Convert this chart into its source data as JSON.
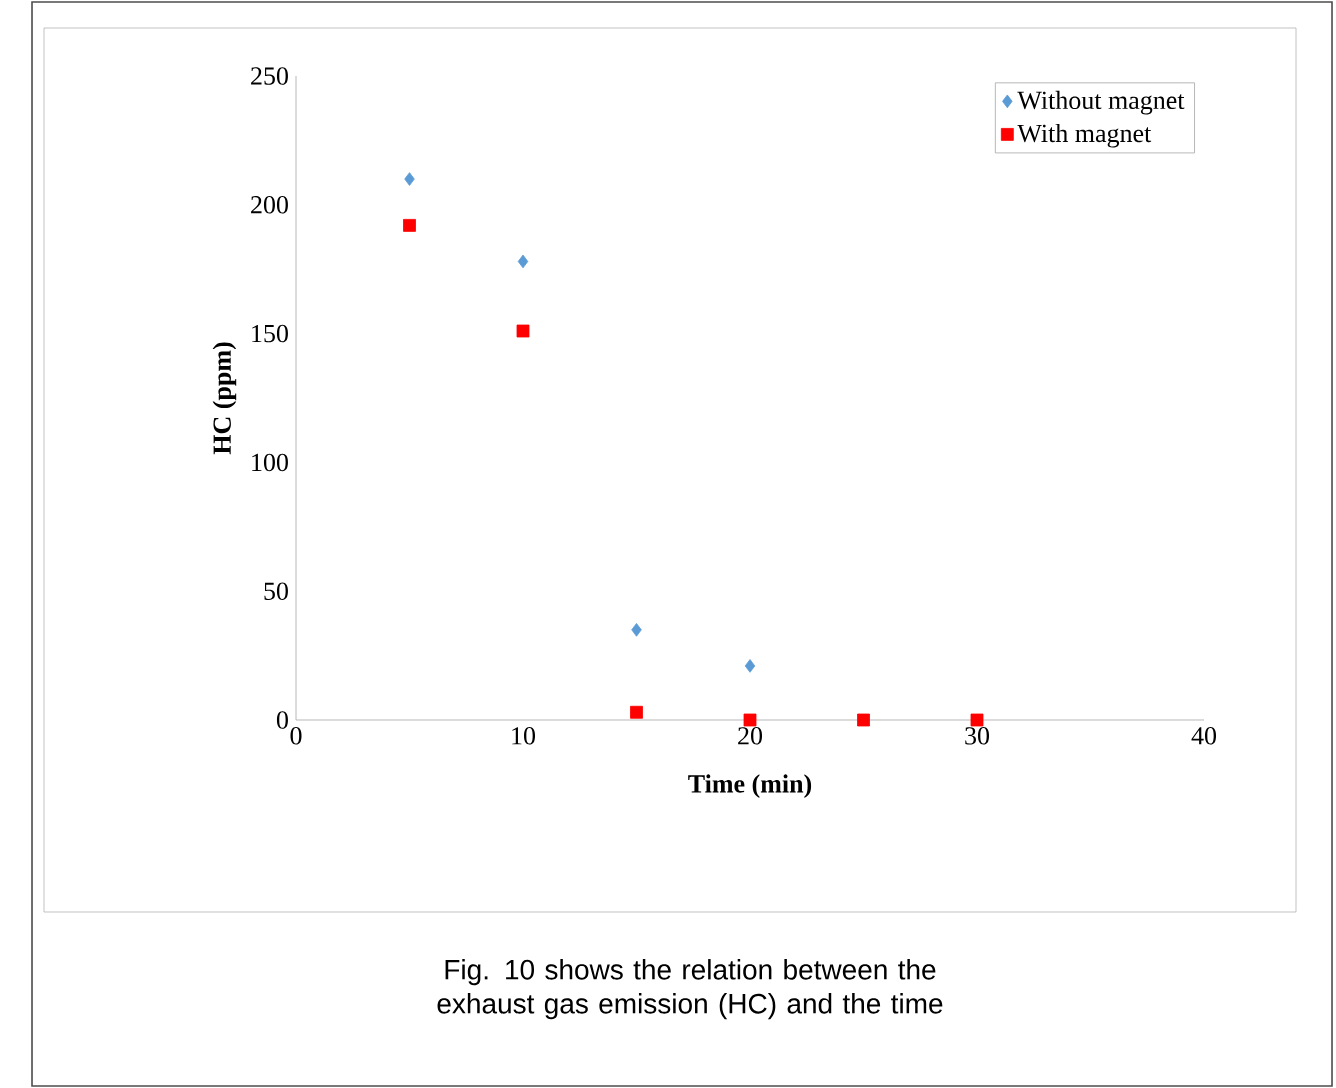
{
  "chart_data": {
    "type": "scatter",
    "xlabel": "Time (min)",
    "ylabel": "HC (ppm)",
    "xlim": [
      0,
      40
    ],
    "xticks": [
      0,
      10,
      20,
      30,
      40
    ],
    "ylim": [
      0,
      250
    ],
    "yticks": [
      0,
      50,
      100,
      150,
      200,
      250
    ],
    "grid": false,
    "legend": "top right",
    "series": [
      {
        "name": "Without magnet",
        "color": "#5b9bd5",
        "marker": "diamond",
        "x": [
          5,
          10,
          15,
          20
        ],
        "values": [
          210,
          178,
          35,
          21
        ]
      },
      {
        "name": "With magnet",
        "color": "#ff0000",
        "marker": "square",
        "x": [
          5,
          10,
          15,
          20,
          25,
          30
        ],
        "values": [
          192,
          151,
          3,
          0,
          0,
          0
        ]
      }
    ],
    "annotations": [
      "Fig. 10 shows the relation between the exhaust gas emission (HC) and the time"
    ]
  }
}
